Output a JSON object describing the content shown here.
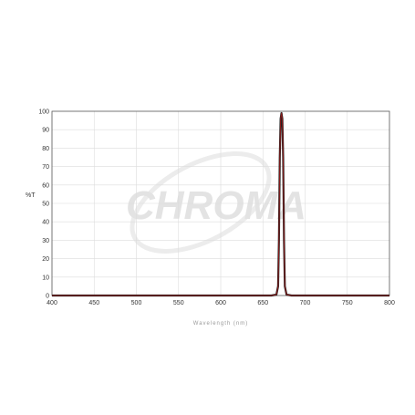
{
  "chart_data": {
    "type": "line",
    "title": "",
    "xlabel": "Wavelength (nm)",
    "ylabel": "%T",
    "xlim": [
      400,
      800
    ],
    "ylim": [
      0,
      100
    ],
    "grid": true,
    "legend": "none",
    "x_ticks": [
      400,
      450,
      500,
      550,
      600,
      650,
      700,
      750,
      800
    ],
    "y_ticks": [
      0,
      10,
      20,
      30,
      40,
      50,
      60,
      70,
      80,
      90,
      100
    ],
    "series": [
      {
        "color": "#8b1a1a",
        "x": [
          400,
          660,
          666,
          668,
          669,
          670,
          671,
          672,
          673,
          674,
          675,
          676,
          678,
          684,
          800
        ],
        "y": [
          0,
          0,
          0.5,
          5,
          30,
          75,
          96,
          99,
          96,
          75,
          30,
          5,
          0.5,
          0,
          0
        ]
      }
    ]
  },
  "watermark": {
    "text": "CHROMA"
  }
}
